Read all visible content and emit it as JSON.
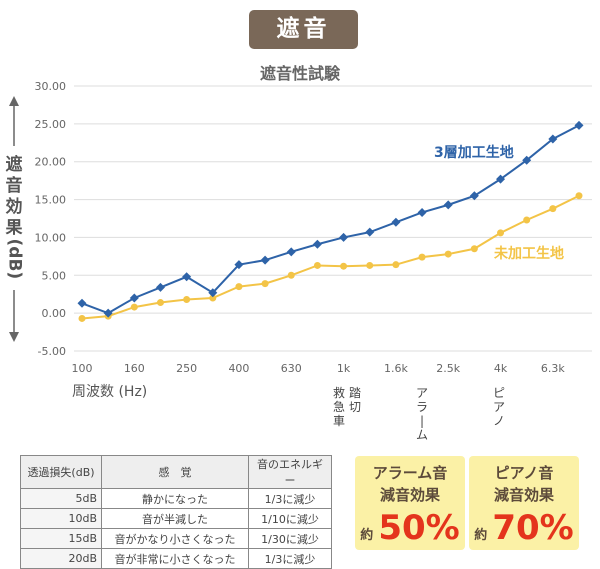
{
  "badge": "遮音",
  "subtitle": "遮音性試験",
  "ylabel_chars": [
    "遮",
    "音",
    "効",
    "果"
  ],
  "ylabel_unit": "(dB)",
  "chart_data": {
    "type": "line",
    "title": "遮音性試験",
    "xlabel": "周波数 (Hz)",
    "ylabel": "遮音効果 (dB)",
    "ylim": [
      -5,
      30
    ],
    "y_ticks": [
      "-5.00",
      "0.00",
      "5.00",
      "10.00",
      "15.00",
      "20.00",
      "25.00",
      "30.00"
    ],
    "y_tick_values": [
      -5,
      0,
      5,
      10,
      15,
      20,
      25,
      30
    ],
    "x_tick_labels": [
      "100",
      "160",
      "250",
      "400",
      "630",
      "1k",
      "1.6k",
      "2.5k",
      "4k",
      "6.3k"
    ],
    "grid": "horizontal",
    "series": [
      {
        "name": "3層加工生地",
        "color": "#2e63a8",
        "marker": "diamond",
        "values": [
          1.3,
          0.0,
          2.0,
          3.4,
          4.8,
          2.7,
          6.4,
          7.0,
          8.1,
          9.1,
          10.0,
          10.7,
          12.0,
          13.3,
          14.3,
          15.5,
          17.7,
          20.2,
          23.0,
          24.8
        ]
      },
      {
        "name": "未加工生地",
        "color": "#f3c447",
        "marker": "circle",
        "values": [
          -0.7,
          -0.4,
          0.8,
          1.4,
          1.8,
          2.0,
          3.5,
          3.9,
          5.0,
          6.3,
          6.2,
          6.3,
          6.4,
          7.4,
          7.8,
          8.5,
          10.6,
          12.3,
          13.8,
          15.5
        ]
      }
    ],
    "annotations": [
      {
        "text": "救急車",
        "at": "1k"
      },
      {
        "text": "踏切",
        "at": "1k"
      },
      {
        "text": "アラーム",
        "at": "1.6k"
      },
      {
        "text": "ピアノ",
        "at": "4k"
      }
    ]
  },
  "table": {
    "headers": [
      "透過損失(dB)",
      "感　覚",
      "音のエネルギー"
    ],
    "rows": [
      [
        "5dB",
        "静かになった",
        "1/3に減少"
      ],
      [
        "10dB",
        "音が半減した",
        "1/10に減少"
      ],
      [
        "15dB",
        "音がかなり小さくなった",
        "1/30に減少"
      ],
      [
        "20dB",
        "音が非常に小さくなった",
        "1/3に減少"
      ]
    ]
  },
  "callouts": [
    {
      "line1": "アラーム音",
      "line2": "減音効果",
      "prefix": "約",
      "value": "50%"
    },
    {
      "line1": "ピアノ音",
      "line2": "減音効果",
      "prefix": "約",
      "value": "70%"
    }
  ]
}
